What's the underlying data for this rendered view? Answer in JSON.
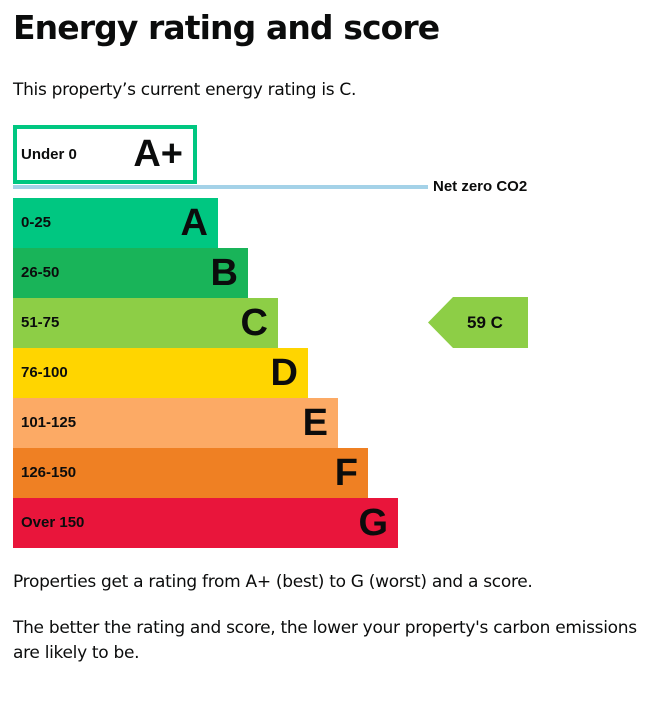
{
  "page": {
    "title": "Energy rating and score",
    "intro": "This property’s current energy rating is C.",
    "paragraph1": "Properties get a rating from A+ (best) to G (worst) and a score.",
    "paragraph2": "The better the rating and score, the lower your property's carbon emissions are likely to be."
  },
  "chart_data": {
    "type": "bar",
    "categories": [
      "A+",
      "A",
      "B",
      "C",
      "D",
      "E",
      "F",
      "G"
    ],
    "bands": [
      {
        "rating": "A+",
        "range": "Under 0",
        "color": "#00c781"
      },
      {
        "rating": "A",
        "range": "0-25",
        "color": "#00c781"
      },
      {
        "rating": "B",
        "range": "26-50",
        "color": "#19b459"
      },
      {
        "rating": "C",
        "range": "51-75",
        "color": "#8dce46"
      },
      {
        "rating": "D",
        "range": "76-100",
        "color": "#ffd500"
      },
      {
        "rating": "E",
        "range": "101-125",
        "color": "#fcaa65"
      },
      {
        "rating": "F",
        "range": "126-150",
        "color": "#ef8023"
      },
      {
        "rating": "G",
        "range": "Over 150",
        "color": "#e9153b"
      }
    ],
    "net_zero_label": "Net zero CO2",
    "net_zero_color": "#a4d2e8",
    "current": {
      "score": 59,
      "rating": "C",
      "label": "59  C",
      "color": "#8dce46"
    }
  }
}
